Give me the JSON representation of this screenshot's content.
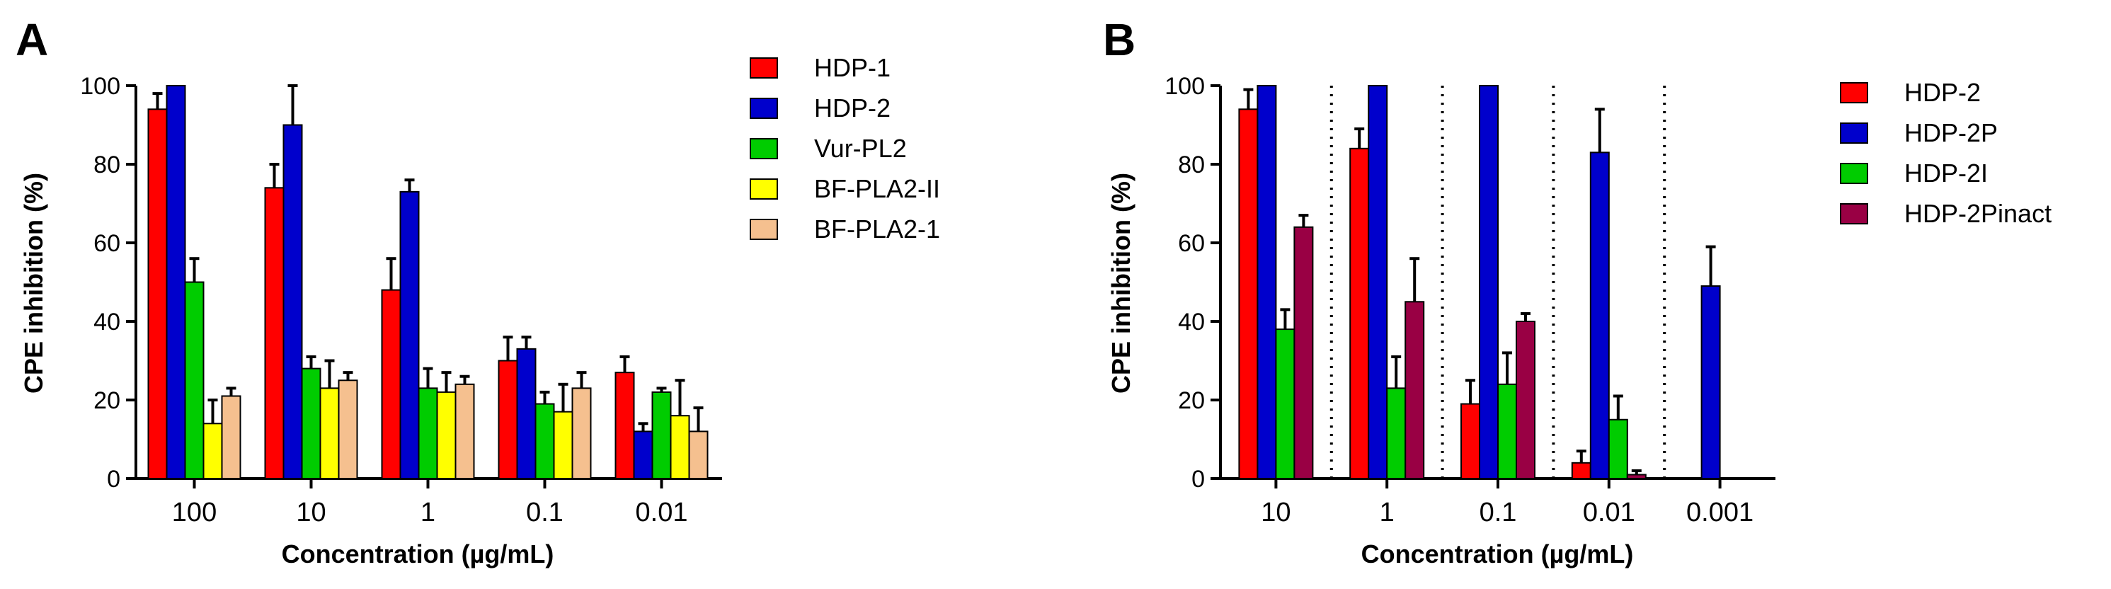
{
  "chart_data": [
    {
      "panel": "A",
      "type": "bar",
      "xlabel": "Concentration (µg/mL)",
      "ylabel": "CPE inhibition (%)",
      "ylim": [
        0,
        100
      ],
      "yticks": [
        0,
        20,
        40,
        60,
        80,
        100
      ],
      "categories": [
        "100",
        "10",
        "1",
        "0.1",
        "0.01"
      ],
      "legend_position": "right",
      "series": [
        {
          "name": "HDP-1",
          "color": "#ff0000",
          "values": [
            94,
            74,
            48,
            30,
            27
          ],
          "errors": [
            4,
            6,
            8,
            6,
            4
          ]
        },
        {
          "name": "HDP-2",
          "color": "#0000cc",
          "values": [
            100,
            90,
            73,
            33,
            12
          ],
          "errors": [
            0,
            10,
            3,
            3,
            2
          ]
        },
        {
          "name": "Vur-PL2",
          "color": "#00cc00",
          "values": [
            50,
            28,
            23,
            19,
            22
          ],
          "errors": [
            6,
            3,
            5,
            3,
            1
          ]
        },
        {
          "name": "BF-PLA2-II",
          "color": "#ffff00",
          "values": [
            14,
            23,
            22,
            17,
            16
          ],
          "errors": [
            6,
            7,
            5,
            7,
            9
          ]
        },
        {
          "name": "BF-PLA2-1",
          "color": "#f5c08f",
          "values": [
            21,
            25,
            24,
            23,
            12
          ],
          "errors": [
            2,
            2,
            2,
            4,
            6
          ]
        }
      ]
    },
    {
      "panel": "B",
      "type": "bar",
      "xlabel": "Concentration (µg/mL)",
      "ylabel": "CPE inhibition (%)",
      "ylim": [
        0,
        100
      ],
      "yticks": [
        0,
        20,
        40,
        60,
        80,
        100
      ],
      "categories": [
        "10",
        "1",
        "0.1",
        "0.01",
        "0.001"
      ],
      "legend_position": "right",
      "series": [
        {
          "name": "HDP-2",
          "color": "#ff0000",
          "values": [
            94,
            84,
            19,
            4,
            null
          ],
          "errors": [
            5,
            5,
            6,
            3,
            null
          ]
        },
        {
          "name": "HDP-2P",
          "color": "#0000cc",
          "values": [
            100,
            100,
            100,
            83,
            49
          ],
          "errors": [
            0,
            0,
            0,
            11,
            10
          ]
        },
        {
          "name": "HDP-2I",
          "color": "#00cc00",
          "values": [
            38,
            23,
            24,
            15,
            null
          ],
          "errors": [
            5,
            8,
            8,
            6,
            null
          ]
        },
        {
          "name": "HDP-2Pinact",
          "color": "#990044",
          "values": [
            64,
            45,
            40,
            1,
            null
          ],
          "errors": [
            3,
            11,
            2,
            1,
            null
          ]
        }
      ]
    }
  ]
}
